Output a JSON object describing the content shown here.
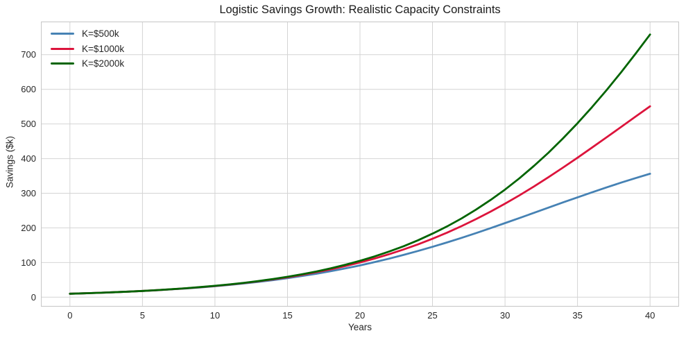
{
  "colors": {
    "grid": "#d4d4d4",
    "spine": "#c9c9c9",
    "text": "#262626",
    "background": "#ffffff"
  },
  "chart_data": {
    "type": "line",
    "title": "Logistic Savings Growth: Realistic Capacity Constraints",
    "xlabel": "Years",
    "ylabel": "Savings ($k)",
    "xlim": [
      -2,
      42
    ],
    "ylim": [
      -27.4,
      795.6
    ],
    "x_ticks": [
      0,
      5,
      10,
      15,
      20,
      25,
      30,
      35,
      40
    ],
    "y_ticks": [
      0,
      100,
      200,
      300,
      400,
      500,
      600,
      700
    ],
    "grid": true,
    "legend_position": "upper left",
    "line_width": 2.8,
    "x": [
      0,
      1,
      2,
      3,
      4,
      5,
      6,
      7,
      8,
      9,
      10,
      11,
      12,
      13,
      14,
      15,
      16,
      17,
      18,
      19,
      20,
      21,
      22,
      23,
      24,
      25,
      26,
      27,
      28,
      29,
      30,
      31,
      32,
      33,
      34,
      35,
      36,
      37,
      38,
      39,
      40
    ],
    "series": [
      {
        "name": "K=$500k",
        "color": "#4682b4",
        "values": [
          10.0,
          11.2,
          12.6,
          14.2,
          16.0,
          17.9,
          20.1,
          22.6,
          25.3,
          28.3,
          31.7,
          35.5,
          39.7,
          44.3,
          49.3,
          54.9,
          61.1,
          67.8,
          75.2,
          83.2,
          91.8,
          101.2,
          111.2,
          121.9,
          133.3,
          145.4,
          158.0,
          171.3,
          185.0,
          199.2,
          213.8,
          228.6,
          243.5,
          258.5,
          273.5,
          288.2,
          302.7,
          316.9,
          330.6,
          343.7,
          356.3
        ]
      },
      {
        "name": "K=$1000k",
        "color": "#dc143c",
        "values": [
          10.0,
          11.3,
          12.7,
          14.3,
          16.1,
          18.1,
          20.3,
          22.9,
          25.7,
          28.9,
          32.4,
          36.4,
          40.9,
          45.9,
          51.4,
          57.6,
          64.5,
          72.1,
          80.5,
          89.9,
          100.2,
          111.5,
          124.0,
          137.6,
          152.5,
          168.7,
          186.2,
          205.0,
          225.3,
          246.9,
          269.9,
          294.2,
          319.7,
          346.4,
          374.0,
          402.5,
          431.7,
          461.3,
          491.2,
          521.2,
          551.0
        ]
      },
      {
        "name": "K=$2000k",
        "color": "#006400",
        "values": [
          10.0,
          11.3,
          12.7,
          14.3,
          16.1,
          18.1,
          20.4,
          23.0,
          25.9,
          29.2,
          32.8,
          36.9,
          41.5,
          46.7,
          52.5,
          59.0,
          66.3,
          74.4,
          83.5,
          93.7,
          105.0,
          117.6,
          131.6,
          147.1,
          164.3,
          183.4,
          204.3,
          227.4,
          252.8,
          280.5,
          310.7,
          343.5,
          379.0,
          417.2,
          458.3,
          502.0,
          548.5,
          597.5,
          649.0,
          702.6,
          758.2
        ]
      }
    ]
  }
}
